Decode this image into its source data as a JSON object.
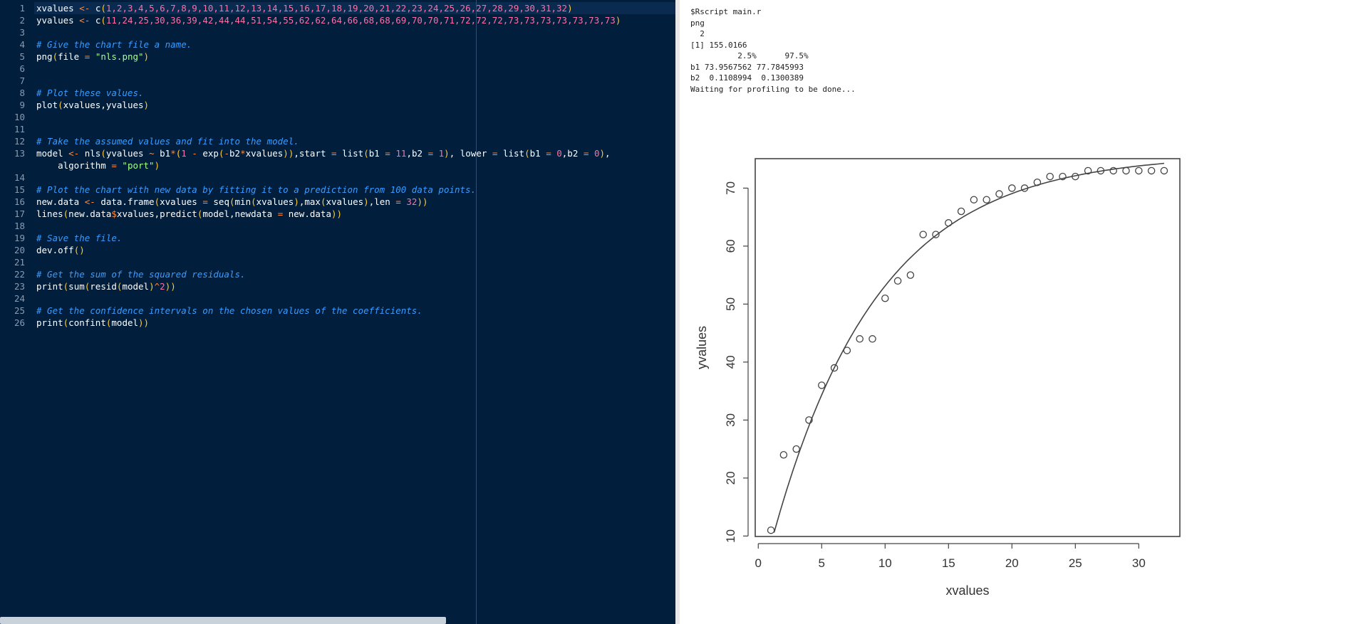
{
  "editor": {
    "line_numbers": [
      "1",
      "2",
      "3",
      "4",
      "5",
      "6",
      "7",
      "8",
      "9",
      "10",
      "11",
      "12",
      "13",
      "",
      "14",
      "15",
      "16",
      "17",
      "18",
      "19",
      "20",
      "21",
      "22",
      "23",
      "24",
      "25",
      "26"
    ],
    "lines": [
      [
        [
          "f",
          "xvalues "
        ],
        [
          "k",
          "<-"
        ],
        [
          "f",
          " "
        ],
        [
          "f",
          "c"
        ],
        [
          "p",
          "("
        ],
        [
          "n",
          "1,2,3,4,5,6,7,8,9,10,11,12,13,14,15,16,17,18,19,20,21,22,23,24,25,26,27,28,29,30,31,32"
        ],
        [
          "p",
          ")"
        ]
      ],
      [
        [
          "f",
          "yvalues "
        ],
        [
          "k",
          "<-"
        ],
        [
          "f",
          " "
        ],
        [
          "f",
          "c"
        ],
        [
          "p",
          "("
        ],
        [
          "n",
          "11,24,25,30,36,39,42,44,44,51,54,55,62,62,64,66,68,68,69,70,70,71,72,72,72,73,73,73,73,73,73,73"
        ],
        [
          "p",
          ")"
        ]
      ],
      [],
      [
        [
          "c",
          "# Give the chart file a name."
        ]
      ],
      [
        [
          "f",
          "png"
        ],
        [
          "p",
          "("
        ],
        [
          "f",
          "file "
        ],
        [
          "k",
          "="
        ],
        [
          "f",
          " "
        ],
        [
          "s",
          "\"nls.png\""
        ],
        [
          "p",
          ")"
        ]
      ],
      [],
      [],
      [
        [
          "c",
          "# Plot these values."
        ]
      ],
      [
        [
          "f",
          "plot"
        ],
        [
          "p",
          "("
        ],
        [
          "f",
          "xvalues,yvalues"
        ],
        [
          "p",
          ")"
        ]
      ],
      [],
      [],
      [
        [
          "c",
          "# Take the assumed values and fit into the model."
        ]
      ],
      [
        [
          "f",
          "model "
        ],
        [
          "k",
          "<-"
        ],
        [
          "f",
          " nls"
        ],
        [
          "p",
          "("
        ],
        [
          "f",
          "yvalues "
        ],
        [
          "k",
          "~"
        ],
        [
          "f",
          " b1"
        ],
        [
          "k",
          "*"
        ],
        [
          "p",
          "("
        ],
        [
          "n",
          "1"
        ],
        [
          "f",
          " "
        ],
        [
          "k",
          "-"
        ],
        [
          "f",
          " exp"
        ],
        [
          "p",
          "("
        ],
        [
          "k",
          "-"
        ],
        [
          "f",
          "b2"
        ],
        [
          "k",
          "*"
        ],
        [
          "f",
          "xvalues"
        ],
        [
          "p",
          "))"
        ],
        [
          "f",
          ",start "
        ],
        [
          "k",
          "="
        ],
        [
          "f",
          " list"
        ],
        [
          "p",
          "("
        ],
        [
          "f",
          "b1 "
        ],
        [
          "k",
          "="
        ],
        [
          "f",
          " "
        ],
        [
          "n",
          "11"
        ],
        [
          "f",
          ",b2 "
        ],
        [
          "k",
          "="
        ],
        [
          "f",
          " "
        ],
        [
          "n",
          "1"
        ],
        [
          "p",
          ")"
        ],
        [
          "f",
          ", lower "
        ],
        [
          "k",
          "="
        ],
        [
          "f",
          " list"
        ],
        [
          "p",
          "("
        ],
        [
          "f",
          "b1 "
        ],
        [
          "k",
          "="
        ],
        [
          "f",
          " "
        ],
        [
          "n",
          "0"
        ],
        [
          "f",
          ",b2 "
        ],
        [
          "k",
          "="
        ],
        [
          "f",
          " "
        ],
        [
          "n",
          "0"
        ],
        [
          "p",
          ")"
        ],
        [
          "f",
          ","
        ]
      ],
      [
        [
          "f",
          "    algorithm "
        ],
        [
          "k",
          "="
        ],
        [
          "f",
          " "
        ],
        [
          "s",
          "\"port\""
        ],
        [
          "p",
          ")"
        ]
      ],
      [],
      [
        [
          "c",
          "# Plot the chart with new data by fitting it to a prediction from 100 data points."
        ]
      ],
      [
        [
          "f",
          "new.data "
        ],
        [
          "k",
          "<-"
        ],
        [
          "f",
          " data.frame"
        ],
        [
          "p",
          "("
        ],
        [
          "f",
          "xvalues "
        ],
        [
          "k",
          "="
        ],
        [
          "f",
          " seq"
        ],
        [
          "p",
          "("
        ],
        [
          "f",
          "min"
        ],
        [
          "p",
          "("
        ],
        [
          "f",
          "xvalues"
        ],
        [
          "p",
          ")"
        ],
        [
          "f",
          ",max"
        ],
        [
          "p",
          "("
        ],
        [
          "f",
          "xvalues"
        ],
        [
          "p",
          ")"
        ],
        [
          "f",
          ",len "
        ],
        [
          "k",
          "="
        ],
        [
          "f",
          " "
        ],
        [
          "n",
          "32"
        ],
        [
          "p",
          "))"
        ]
      ],
      [
        [
          "f",
          "lines"
        ],
        [
          "p",
          "("
        ],
        [
          "f",
          "new.data"
        ],
        [
          "k",
          "$"
        ],
        [
          "f",
          "xvalues,predict"
        ],
        [
          "p",
          "("
        ],
        [
          "f",
          "model,newdata "
        ],
        [
          "k",
          "="
        ],
        [
          "f",
          " new.data"
        ],
        [
          "p",
          "))"
        ]
      ],
      [],
      [
        [
          "c",
          "# Save the file."
        ]
      ],
      [
        [
          "f",
          "dev.off"
        ],
        [
          "p",
          "()"
        ]
      ],
      [],
      [
        [
          "c",
          "# Get the sum of the squared residuals."
        ]
      ],
      [
        [
          "f",
          "print"
        ],
        [
          "p",
          "("
        ],
        [
          "f",
          "sum"
        ],
        [
          "p",
          "("
        ],
        [
          "f",
          "resid"
        ],
        [
          "p",
          "("
        ],
        [
          "f",
          "model"
        ],
        [
          "p",
          ")"
        ],
        [
          "k",
          "^"
        ],
        [
          "n",
          "2"
        ],
        [
          "p",
          "))"
        ]
      ],
      [],
      [
        [
          "c",
          "# Get the confidence intervals on the chosen values of the coefficients."
        ]
      ],
      [
        [
          "f",
          "print"
        ],
        [
          "p",
          "("
        ],
        [
          "f",
          "confint"
        ],
        [
          "p",
          "("
        ],
        [
          "f",
          "model"
        ],
        [
          "p",
          "))"
        ]
      ]
    ]
  },
  "console": {
    "lines": [
      "$Rscript main.r",
      "png",
      "  2",
      "[1] 155.0166",
      "          2.5%      97.5%",
      "b1 73.9567562 77.7845993",
      "b2  0.1108994  0.1300389",
      "Waiting for profiling to be done..."
    ]
  },
  "chart_data": {
    "type": "scatter",
    "x": [
      1,
      2,
      3,
      4,
      5,
      6,
      7,
      8,
      9,
      10,
      11,
      12,
      13,
      14,
      15,
      16,
      17,
      18,
      19,
      20,
      21,
      22,
      23,
      24,
      25,
      26,
      27,
      28,
      29,
      30,
      31,
      32
    ],
    "y": [
      11,
      24,
      25,
      30,
      36,
      39,
      42,
      44,
      44,
      51,
      54,
      55,
      62,
      62,
      64,
      66,
      68,
      68,
      69,
      70,
      70,
      71,
      72,
      72,
      72,
      73,
      73,
      73,
      73,
      73,
      73,
      73
    ],
    "fit_line": {
      "b1": 75.87,
      "b2": 0.1205
    },
    "xlabel": "xvalues",
    "ylabel": "yvalues",
    "xticks": [
      "0",
      "5",
      "10",
      "15",
      "20",
      "25",
      "30"
    ],
    "yticks": [
      "10",
      "20",
      "30",
      "40",
      "50",
      "60",
      "70"
    ],
    "xlim": [
      -0.24,
      33.24
    ],
    "ylim": [
      9.92,
      75.08
    ]
  }
}
